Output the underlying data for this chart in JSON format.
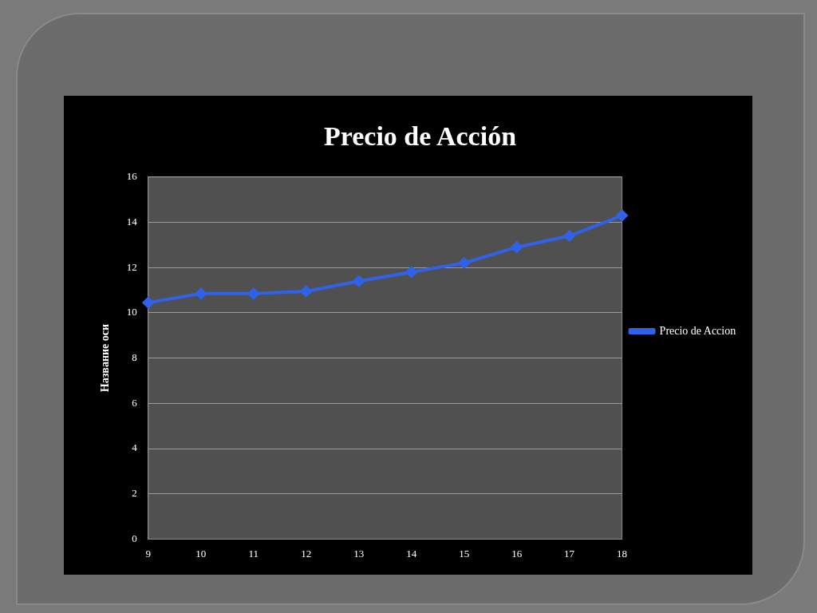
{
  "chart_data": {
    "type": "line",
    "title": "Precio de Acción",
    "ylabel": "Название оси",
    "categories": [
      "9",
      "10",
      "11",
      "12",
      "13",
      "14",
      "15",
      "16",
      "17",
      "18"
    ],
    "series": [
      {
        "name": "Precio de Accion",
        "color": "#2f62e8",
        "values": [
          10.45,
          10.85,
          10.85,
          10.95,
          11.4,
          11.8,
          12.2,
          12.9,
          13.4,
          14.3
        ]
      }
    ],
    "ylim": [
      0,
      16
    ],
    "yticks": [
      0,
      2,
      4,
      6,
      8,
      10,
      12,
      14,
      16
    ],
    "grid": "y",
    "legend": "right",
    "marker": "diamond",
    "line_style": "solid"
  }
}
